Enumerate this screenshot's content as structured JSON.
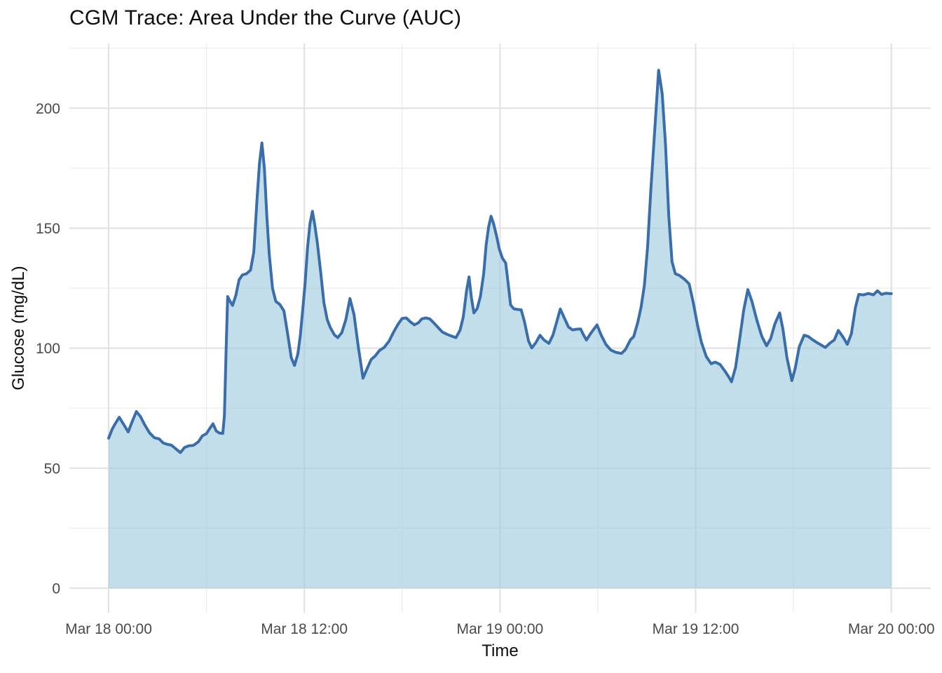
{
  "chart_data": {
    "type": "area",
    "title": "CGM Trace: Area Under the Curve (AUC)",
    "xlabel": "Time",
    "ylabel": "Glucose (mg/dL)",
    "x_unit": "hours since Mar 18 00:00",
    "x_range_hours": [
      0,
      48
    ],
    "ylim": [
      0,
      225
    ],
    "grid": true,
    "legend": false,
    "x_ticks": [
      {
        "hour": 0,
        "label": "Mar 18 00:00"
      },
      {
        "hour": 12,
        "label": "Mar 18 12:00"
      },
      {
        "hour": 24,
        "label": "Mar 19 00:00"
      },
      {
        "hour": 36,
        "label": "Mar 19 12:00"
      },
      {
        "hour": 48,
        "label": "Mar 20 00:00"
      }
    ],
    "x_minor_hours": [
      6,
      18,
      30,
      42
    ],
    "y_ticks": [
      0,
      50,
      100,
      150,
      200
    ],
    "y_minor_ticks": [
      25,
      75,
      125,
      175,
      225
    ],
    "colors": {
      "line": "#3a6eaa",
      "fill": "rgba(158, 202, 222, 0.63)",
      "grid_major": "#e2e2e2",
      "grid_minor": "#ededed",
      "tick_text": "#4a4a4a",
      "title_text": "#0d0d0d"
    },
    "series": [
      {
        "name": "glucose_mg_dl",
        "points": [
          [
            0,
            62.5
          ],
          [
            0.2,
            66
          ],
          [
            0.4,
            68.5
          ],
          [
            0.65,
            71.2
          ],
          [
            0.9,
            68.5
          ],
          [
            1.2,
            65.1
          ],
          [
            1.45,
            69.5
          ],
          [
            1.7,
            73.6
          ],
          [
            1.95,
            71.5
          ],
          [
            2.2,
            68.2
          ],
          [
            2.5,
            64.8
          ],
          [
            2.8,
            62.7
          ],
          [
            3.1,
            62.2
          ],
          [
            3.35,
            60.5
          ],
          [
            3.6,
            59.9
          ],
          [
            3.85,
            59.6
          ],
          [
            4.1,
            58.2
          ],
          [
            4.4,
            56.5
          ],
          [
            4.65,
            58.6
          ],
          [
            4.9,
            59.3
          ],
          [
            5.2,
            59.5
          ],
          [
            5.5,
            61
          ],
          [
            5.75,
            63.5
          ],
          [
            6,
            64.4
          ],
          [
            6.2,
            66.5
          ],
          [
            6.4,
            68.5
          ],
          [
            6.6,
            65.5
          ],
          [
            6.8,
            64.6
          ],
          [
            7,
            64.5
          ],
          [
            7.1,
            72
          ],
          [
            7.2,
            98
          ],
          [
            7.3,
            121.5
          ],
          [
            7.45,
            119.5
          ],
          [
            7.6,
            117.8
          ],
          [
            7.8,
            122
          ],
          [
            8,
            128.5
          ],
          [
            8.2,
            130.5
          ],
          [
            8.45,
            131
          ],
          [
            8.7,
            132.5
          ],
          [
            8.9,
            140
          ],
          [
            9.1,
            162
          ],
          [
            9.25,
            177
          ],
          [
            9.4,
            185.5
          ],
          [
            9.55,
            175
          ],
          [
            9.7,
            155
          ],
          [
            9.85,
            139
          ],
          [
            10.05,
            125
          ],
          [
            10.25,
            119.5
          ],
          [
            10.5,
            118.2
          ],
          [
            10.75,
            115.5
          ],
          [
            11,
            105
          ],
          [
            11.2,
            96
          ],
          [
            11.4,
            92.8
          ],
          [
            11.6,
            97.5
          ],
          [
            11.75,
            105
          ],
          [
            11.9,
            116
          ],
          [
            12.05,
            127
          ],
          [
            12.2,
            142
          ],
          [
            12.35,
            152
          ],
          [
            12.5,
            157
          ],
          [
            12.65,
            151
          ],
          [
            12.8,
            143.8
          ],
          [
            13,
            132
          ],
          [
            13.2,
            119
          ],
          [
            13.4,
            112
          ],
          [
            13.6,
            108.5
          ],
          [
            13.85,
            105.5
          ],
          [
            14.05,
            104.4
          ],
          [
            14.3,
            106.5
          ],
          [
            14.55,
            112
          ],
          [
            14.8,
            120.7
          ],
          [
            15.05,
            114
          ],
          [
            15.3,
            101
          ],
          [
            15.6,
            87.5
          ],
          [
            15.85,
            91.5
          ],
          [
            16.1,
            95.3
          ],
          [
            16.35,
            96.8
          ],
          [
            16.6,
            99
          ],
          [
            16.9,
            100.3
          ],
          [
            17.2,
            103
          ],
          [
            17.5,
            107
          ],
          [
            17.75,
            110
          ],
          [
            18,
            112.4
          ],
          [
            18.25,
            112.6
          ],
          [
            18.5,
            111
          ],
          [
            18.75,
            109.7
          ],
          [
            19,
            110.6
          ],
          [
            19.2,
            112.2
          ],
          [
            19.45,
            112.6
          ],
          [
            19.7,
            112.2
          ],
          [
            19.9,
            110.8
          ],
          [
            20.15,
            109
          ],
          [
            20.45,
            106.8
          ],
          [
            20.75,
            105.8
          ],
          [
            21,
            105.1
          ],
          [
            21.3,
            104.4
          ],
          [
            21.55,
            107.5
          ],
          [
            21.75,
            113
          ],
          [
            21.95,
            124
          ],
          [
            22.1,
            129.7
          ],
          [
            22.25,
            121
          ],
          [
            22.4,
            114.7
          ],
          [
            22.6,
            116.5
          ],
          [
            22.8,
            121.5
          ],
          [
            23,
            131
          ],
          [
            23.15,
            143
          ],
          [
            23.3,
            150.5
          ],
          [
            23.45,
            155
          ],
          [
            23.6,
            152
          ],
          [
            23.8,
            146.5
          ],
          [
            23.95,
            141.5
          ],
          [
            24.15,
            137.5
          ],
          [
            24.35,
            135.5
          ],
          [
            24.5,
            127
          ],
          [
            24.65,
            118
          ],
          [
            24.85,
            116.4
          ],
          [
            25.1,
            116.1
          ],
          [
            25.3,
            116
          ],
          [
            25.5,
            111
          ],
          [
            25.75,
            103
          ],
          [
            25.95,
            100.1
          ],
          [
            26.2,
            102.3
          ],
          [
            26.45,
            105.4
          ],
          [
            26.7,
            103.4
          ],
          [
            27,
            102
          ],
          [
            27.25,
            105.5
          ],
          [
            27.5,
            111.5
          ],
          [
            27.7,
            116.3
          ],
          [
            27.95,
            112.5
          ],
          [
            28.2,
            108.8
          ],
          [
            28.45,
            107.6
          ],
          [
            28.7,
            107.9
          ],
          [
            28.95,
            108
          ],
          [
            29.1,
            105.8
          ],
          [
            29.3,
            103.4
          ],
          [
            29.6,
            106.5
          ],
          [
            29.95,
            109.7
          ],
          [
            30.2,
            105.5
          ],
          [
            30.5,
            101.5
          ],
          [
            30.8,
            99.2
          ],
          [
            31.1,
            98.3
          ],
          [
            31.45,
            97.8
          ],
          [
            31.7,
            99.5
          ],
          [
            32,
            103.5
          ],
          [
            32.2,
            104.8
          ],
          [
            32.45,
            110.7
          ],
          [
            32.65,
            117
          ],
          [
            32.85,
            126
          ],
          [
            33.05,
            142
          ],
          [
            33.25,
            166
          ],
          [
            33.5,
            192
          ],
          [
            33.73,
            215.8
          ],
          [
            33.95,
            206
          ],
          [
            34.15,
            185
          ],
          [
            34.35,
            155
          ],
          [
            34.55,
            136
          ],
          [
            34.75,
            131
          ],
          [
            35,
            130.3
          ],
          [
            35.3,
            128.8
          ],
          [
            35.6,
            126.8
          ],
          [
            35.85,
            119
          ],
          [
            36.1,
            110
          ],
          [
            36.35,
            102.5
          ],
          [
            36.65,
            96.5
          ],
          [
            36.95,
            93.5
          ],
          [
            37.2,
            94.2
          ],
          [
            37.5,
            93.2
          ],
          [
            37.8,
            90.4
          ],
          [
            38.05,
            87.8
          ],
          [
            38.2,
            86
          ],
          [
            38.45,
            92
          ],
          [
            38.7,
            104
          ],
          [
            38.95,
            116
          ],
          [
            39.2,
            124.4
          ],
          [
            39.45,
            119.5
          ],
          [
            39.75,
            111.7
          ],
          [
            40.05,
            105
          ],
          [
            40.35,
            101
          ],
          [
            40.6,
            104
          ],
          [
            40.85,
            110
          ],
          [
            41.15,
            114.7
          ],
          [
            41.35,
            108
          ],
          [
            41.6,
            96
          ],
          [
            41.9,
            86.5
          ],
          [
            42.1,
            91.5
          ],
          [
            42.35,
            100.5
          ],
          [
            42.65,
            105.4
          ],
          [
            42.9,
            104.9
          ],
          [
            43.15,
            103.6
          ],
          [
            43.4,
            102.5
          ],
          [
            43.65,
            101.5
          ],
          [
            43.95,
            100.3
          ],
          [
            44.25,
            102.2
          ],
          [
            44.5,
            103.4
          ],
          [
            44.75,
            107.4
          ],
          [
            45.05,
            104.5
          ],
          [
            45.3,
            101.6
          ],
          [
            45.55,
            106
          ],
          [
            45.8,
            117
          ],
          [
            46,
            122.4
          ],
          [
            46.3,
            122.2
          ],
          [
            46.6,
            122.8
          ],
          [
            46.9,
            122.2
          ],
          [
            47.15,
            123.9
          ],
          [
            47.4,
            122.4
          ],
          [
            47.65,
            122.9
          ],
          [
            48,
            122.7
          ]
        ]
      }
    ]
  }
}
